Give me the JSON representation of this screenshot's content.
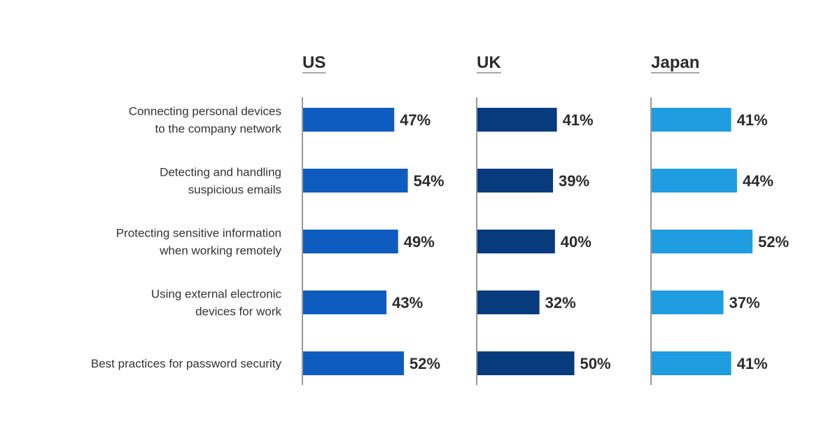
{
  "chart_data": {
    "type": "bar",
    "orientation": "horizontal",
    "categories": [
      [
        "Connecting personal devices",
        "to the company network"
      ],
      [
        "Detecting and handling",
        "suspicious emails"
      ],
      [
        "Protecting sensitive information",
        "when working remotely"
      ],
      [
        "Using external electronic",
        "devices for work"
      ],
      [
        "Best practices for password security"
      ]
    ],
    "series": [
      {
        "name": "US",
        "values": [
          47,
          54,
          49,
          43,
          52
        ],
        "labels": [
          "47%",
          "54%",
          "49%",
          "43%",
          "52%"
        ],
        "color": "#0e5cc0"
      },
      {
        "name": "UK",
        "values": [
          41,
          39,
          40,
          32,
          50
        ],
        "labels": [
          "41%",
          "39%",
          "40%",
          "32%",
          "50%"
        ],
        "color": "#073b7d"
      },
      {
        "name": "Japan",
        "values": [
          41,
          44,
          52,
          37,
          41
        ],
        "labels": [
          "41%",
          "44%",
          "52%",
          "37%",
          "41%"
        ],
        "color": "#1f9de0"
      }
    ],
    "unit": "%",
    "xlim": [
      0,
      100
    ],
    "grid": false,
    "legend": "none"
  }
}
